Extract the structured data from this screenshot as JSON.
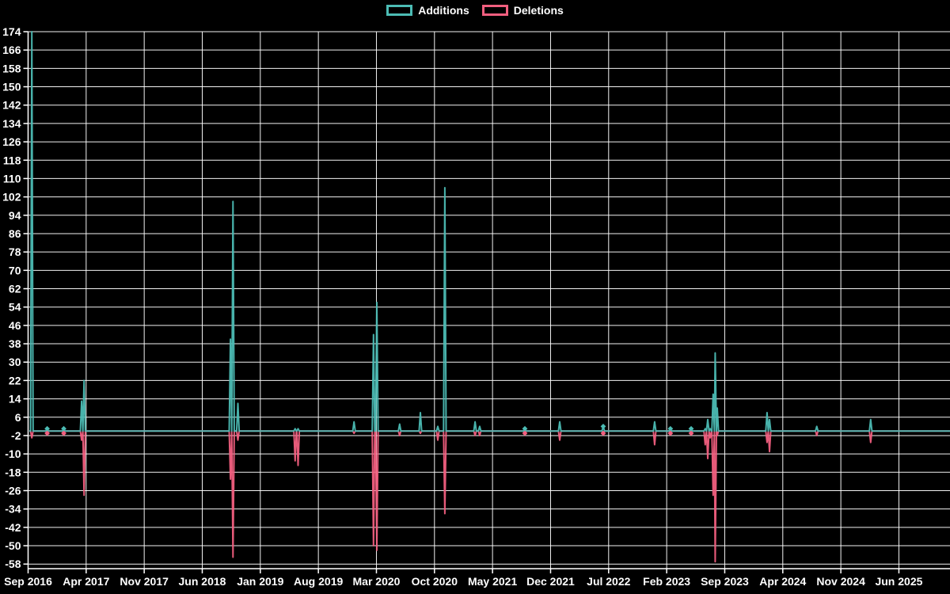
{
  "page": {
    "background_color": "#000000",
    "text_color": "#ffffff"
  },
  "chart_data": {
    "type": "line",
    "title": "",
    "xlabel": "",
    "ylabel": "",
    "legend_position": "top",
    "grid": true,
    "grid_color": "#ffffff",
    "background_color": "#000000",
    "text_color": "#ffffff",
    "ylim": [
      -60,
      174
    ],
    "y_tick_max": 174,
    "y_tick_min": -58,
    "y_tick_step": 8,
    "x_tick_labels": [
      "Sep 2016",
      "Apr 2017",
      "Nov 2017",
      "Jun 2018",
      "Jan 2019",
      "Aug 2019",
      "Mar 2020",
      "Oct 2020",
      "May 2021",
      "Dec 2021",
      "Jul 2022",
      "Feb 2023",
      "Sep 2023",
      "Apr 2024",
      "Nov 2024",
      "Jun 2025"
    ],
    "x_tick_interval_months": 7,
    "series": [
      {
        "name": "Additions",
        "color": "#4cbcb4",
        "value_key": "add"
      },
      {
        "name": "Deletions",
        "color": "#f25f7f",
        "value_key": "del"
      }
    ],
    "baseline_value": 0,
    "events_note": "Weekly series; all weeks not listed are 0 additions / 0 deletions. 'm' = months after Sep 2016.",
    "events": [
      {
        "date": "Sep 2016",
        "m": 0.45,
        "add": 174,
        "del": -3,
        "marker": false
      },
      {
        "date": "Nov 2016",
        "m": 2.3,
        "add": 1,
        "del": -1,
        "marker": true
      },
      {
        "date": "Jan 2017",
        "m": 4.3,
        "add": 1,
        "del": -1,
        "marker": true
      },
      {
        "date": "Mar 2017",
        "m": 6.45,
        "add": 13,
        "del": -4,
        "marker": false
      },
      {
        "date": "Apr 2017",
        "m": 6.75,
        "add": 22,
        "del": -28,
        "marker": false
      },
      {
        "date": "Sep 2018",
        "m": 24.4,
        "add": 40,
        "del": -21,
        "marker": false
      },
      {
        "date": "Oct 2018",
        "m": 24.7,
        "add": 100,
        "del": -55,
        "marker": false
      },
      {
        "date": "Oct 2018",
        "m": 25.3,
        "add": 12,
        "del": -4,
        "marker": false
      },
      {
        "date": "May 2019",
        "m": 32.2,
        "add": 1,
        "del": -13,
        "marker": false
      },
      {
        "date": "May 2019",
        "m": 32.55,
        "add": 1,
        "del": -15,
        "marker": false
      },
      {
        "date": "Dec 2019",
        "m": 39.3,
        "add": 4,
        "del": -1,
        "marker": false
      },
      {
        "date": "Feb 2020",
        "m": 41.65,
        "add": 42,
        "del": -50,
        "marker": false
      },
      {
        "date": "Mar 2020",
        "m": 42.05,
        "add": 56,
        "del": -52,
        "marker": false
      },
      {
        "date": "May 2020",
        "m": 44.8,
        "add": 3,
        "del": -2,
        "marker": false
      },
      {
        "date": "Aug 2020",
        "m": 47.3,
        "add": 8,
        "del": -1,
        "marker": false
      },
      {
        "date": "Oct 2020",
        "m": 49.4,
        "add": 2,
        "del": -4,
        "marker": false
      },
      {
        "date": "Nov 2020",
        "m": 50.25,
        "add": 106,
        "del": -36,
        "marker": false
      },
      {
        "date": "Feb 2021",
        "m": 53.9,
        "add": 4,
        "del": -2,
        "marker": false
      },
      {
        "date": "Mar 2021",
        "m": 54.45,
        "add": 2,
        "del": -2,
        "marker": false
      },
      {
        "date": "Aug 2021",
        "m": 59.9,
        "add": 1,
        "del": -1,
        "marker": true
      },
      {
        "date": "Jan 2022",
        "m": 64.1,
        "add": 4,
        "del": -4,
        "marker": false
      },
      {
        "date": "Jun 2022",
        "m": 69.35,
        "add": 2,
        "del": -1,
        "marker": true
      },
      {
        "date": "Dec 2022",
        "m": 75.55,
        "add": 4,
        "del": -6,
        "marker": false
      },
      {
        "date": "Feb 2023",
        "m": 77.45,
        "add": 1,
        "del": -1,
        "marker": true
      },
      {
        "date": "May 2023",
        "m": 79.95,
        "add": 1,
        "del": -1,
        "marker": true
      },
      {
        "date": "Jun 2023",
        "m": 81.65,
        "add": 1,
        "del": -6,
        "marker": false
      },
      {
        "date": "Jul 2023",
        "m": 81.95,
        "add": 5,
        "del": -12,
        "marker": false
      },
      {
        "date": "Jul 2023",
        "m": 82.25,
        "add": 1,
        "del": -3,
        "marker": false
      },
      {
        "date": "Aug 2023",
        "m": 82.6,
        "add": 16,
        "del": -28,
        "marker": false
      },
      {
        "date": "Aug 2023",
        "m": 82.85,
        "add": 34,
        "del": -57,
        "marker": false
      },
      {
        "date": "Sep 2023",
        "m": 83.1,
        "add": 10,
        "del": -2,
        "marker": false
      },
      {
        "date": "Feb 2024",
        "m": 89.1,
        "add": 8,
        "del": -5,
        "marker": false
      },
      {
        "date": "Feb 2024",
        "m": 89.4,
        "add": 5,
        "del": -9,
        "marker": false
      },
      {
        "date": "Aug 2024",
        "m": 95.1,
        "add": 2,
        "del": -2,
        "marker": false
      },
      {
        "date": "Mar 2025",
        "m": 101.6,
        "add": 5,
        "del": -5,
        "marker": false
      }
    ]
  }
}
